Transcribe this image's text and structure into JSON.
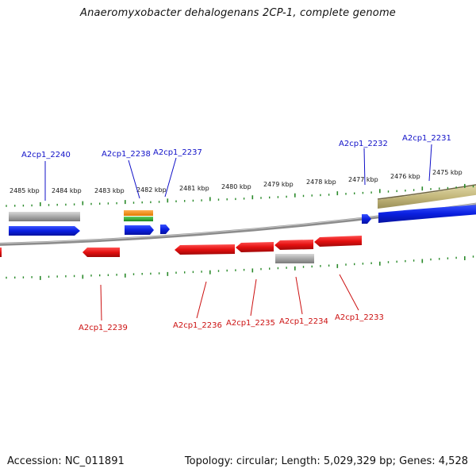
{
  "title": "Anaeromyxobacter dehalogenans 2CP-1, complete genome",
  "footer": {
    "accession": "Accession: NC_011891",
    "summary": "Topology: circular; Length: 5,029,329 bp; Genes: 4,528"
  },
  "colors": {
    "forward_label": "#1010c8",
    "reverse_label": "#cc1010",
    "forward_gene": "#0a1fe0",
    "reverse_gene": "#e81010",
    "grey_feature": "#a8a8a8",
    "tan_feature": "#c4b87c",
    "orange_feature": "#f08c14",
    "green_feature": "#2fa82f",
    "backbone": "#8a8a8a",
    "tick": "#2a8a2a"
  },
  "scale_labels": [
    "2485 kbp",
    "2484 kbp",
    "2483 kbp",
    "2482 kbp",
    "2481 kbp",
    "2480 kbp",
    "2479 kbp",
    "2478 kbp",
    "2477 kbp",
    "2476 kbp",
    "2475 kbp"
  ],
  "forward_genes": [
    "A2cp1_2240",
    "A2cp1_2238",
    "A2cp1_2237",
    "A2cp1_2232",
    "A2cp1_2231"
  ],
  "reverse_genes": [
    "A2cp1_2239",
    "A2cp1_2236",
    "A2cp1_2235",
    "A2cp1_2234",
    "A2cp1_2233"
  ]
}
